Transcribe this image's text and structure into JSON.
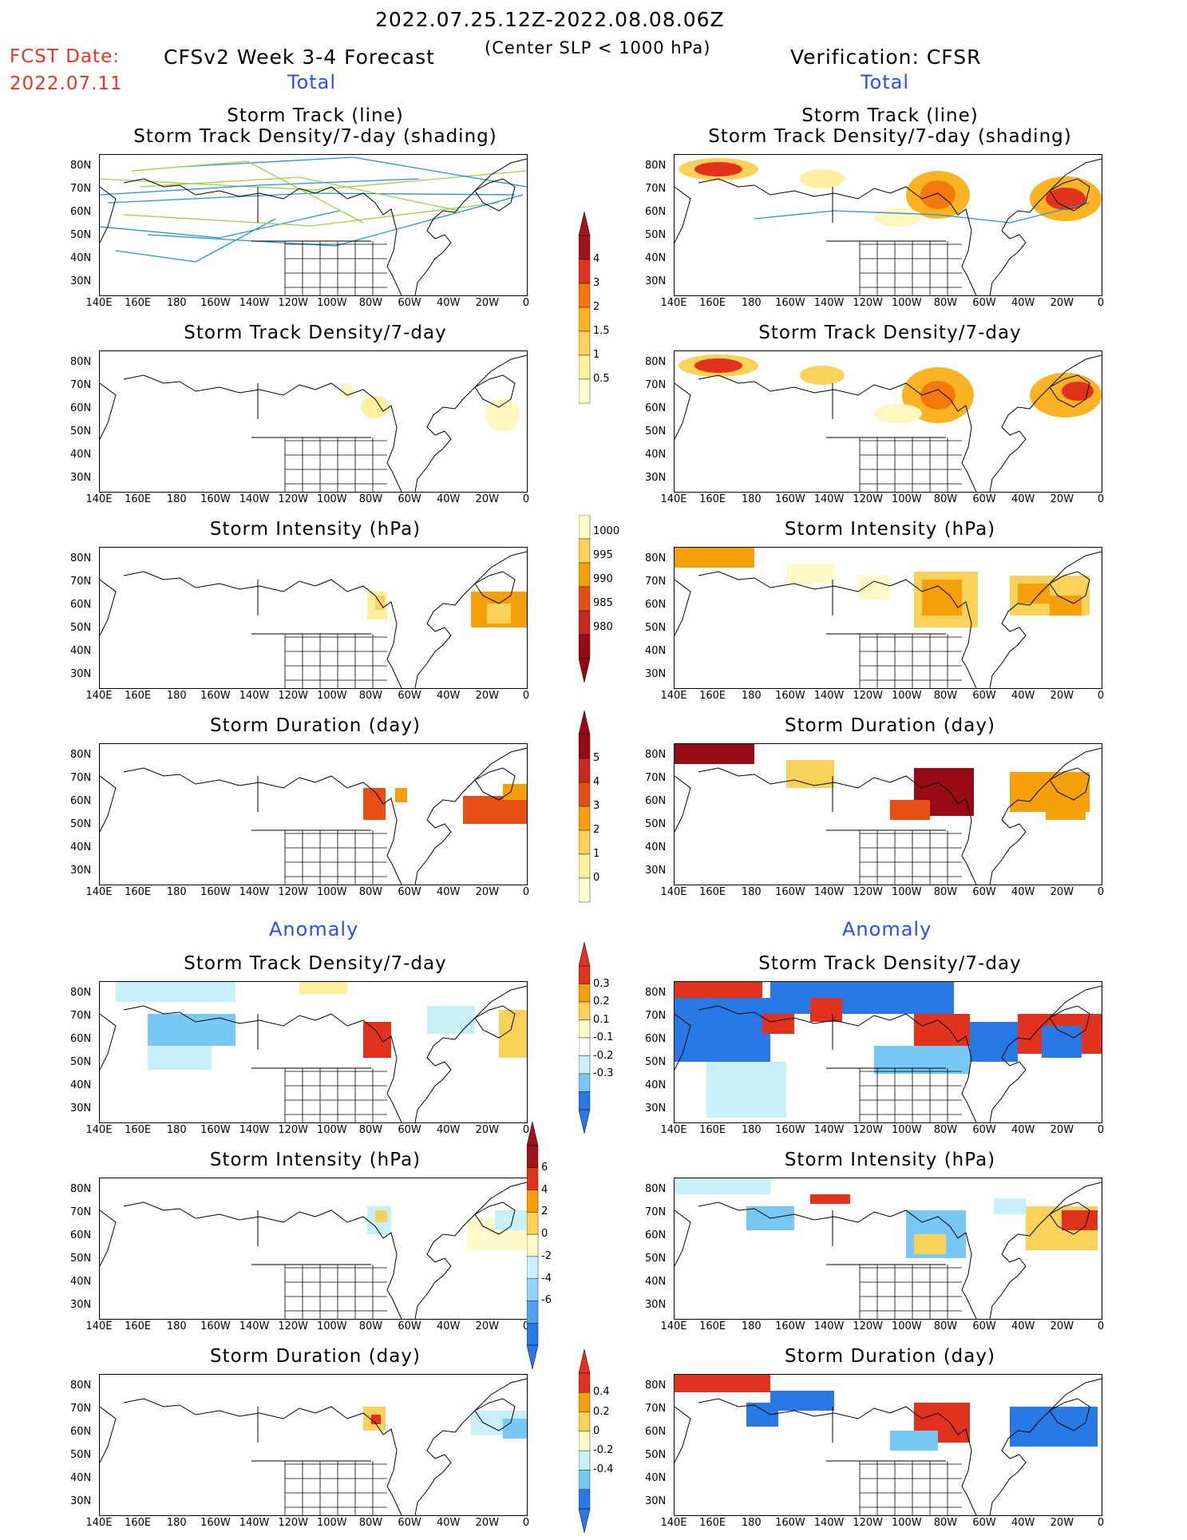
{
  "header": {
    "date_range": "2022.07.25.12Z-2022.08.08.06Z",
    "fcst_label": "FCST Date:",
    "fcst_date": "2022.07.11",
    "model_title": "CFSv2 Week 3-4 Forecast",
    "criterion": "(Center SLP < 1000 hPa)",
    "verification": "Verification: CFSR",
    "left_section_total": "Total",
    "right_section_total": "Total",
    "left_section_anomaly": "Anomaly",
    "right_section_anomaly": "Anomaly"
  },
  "axes": {
    "lat_labels": [
      "80N",
      "70N",
      "60N",
      "50N",
      "40N",
      "30N"
    ],
    "lon_labels": [
      "140E",
      "160E",
      "180",
      "160W",
      "140W",
      "120W",
      "100W",
      "80W",
      "60W",
      "40W",
      "20W",
      "0"
    ]
  },
  "panels": {
    "left": [
      {
        "title1": "Storm Track (line)",
        "title2": "Storm Track Density/7-day (shading)"
      },
      {
        "title1": "Storm Track Density/7-day"
      },
      {
        "title1": "Storm Intensity (hPa)"
      },
      {
        "title1": "Storm Duration (day)"
      },
      {
        "title1": "Storm Track Density/7-day"
      },
      {
        "title1": "Storm Intensity (hPa)"
      },
      {
        "title1": "Storm Duration (day)"
      }
    ],
    "right": [
      {
        "title1": "Storm Track (line)",
        "title2": "Storm Track Density/7-day (shading)"
      },
      {
        "title1": "Storm Track Density/7-day"
      },
      {
        "title1": "Storm Intensity (hPa)"
      },
      {
        "title1": "Storm Duration (day)"
      },
      {
        "title1": "Storm Track Density/7-day"
      },
      {
        "title1": "Storm Intensity (hPa)"
      },
      {
        "title1": "Storm Duration (day)"
      }
    ]
  },
  "colorbars": {
    "density": {
      "labels": [
        "4",
        "3",
        "2",
        "1.5",
        "1",
        "0.5"
      ],
      "colors": [
        "#a0141e",
        "#e1321e",
        "#f5780a",
        "#fab423",
        "#fad25a",
        "#fff0a0",
        "#ffffd2"
      ]
    },
    "intensity": {
      "labels": [
        "1000",
        "995",
        "990",
        "985",
        "980"
      ],
      "colors": [
        "#fffac8",
        "#fad25a",
        "#f5a00a",
        "#e65014",
        "#c8281e",
        "#960a14"
      ]
    },
    "duration": {
      "labels": [
        "5",
        "4",
        "3",
        "2",
        "1",
        "0"
      ],
      "colors": [
        "#960a14",
        "#c8281e",
        "#e65014",
        "#f5a00a",
        "#fad25a",
        "#fff0a0",
        "#ffffd2"
      ]
    },
    "density_anom": {
      "labels": [
        "0.3",
        "0.2",
        "0.1",
        "-0.1",
        "-0.2",
        "-0.3"
      ],
      "colors": [
        "#e1321e",
        "#f5a00a",
        "#fad25a",
        "#fffac8",
        "#ffffff",
        "#c8f0fa",
        "#78c8f5",
        "#2878e6"
      ]
    },
    "intensity_anom": {
      "labels": [
        "6",
        "4",
        "2",
        "0",
        "-2",
        "-4",
        "-6"
      ],
      "colors": [
        "#a0141e",
        "#e1321e",
        "#f5a00a",
        "#fad25a",
        "#fffac8",
        "#c8f0fa",
        "#96d2f5",
        "#5aa0f0",
        "#2878e6"
      ]
    },
    "duration_anom": {
      "labels": [
        "0.4",
        "0.2",
        "0",
        "-0.2",
        "-0.4"
      ],
      "colors": [
        "#e1321e",
        "#f5a00a",
        "#fad25a",
        "#fffac8",
        "#c8f0fa",
        "#78c8f5",
        "#2878e6"
      ]
    }
  }
}
